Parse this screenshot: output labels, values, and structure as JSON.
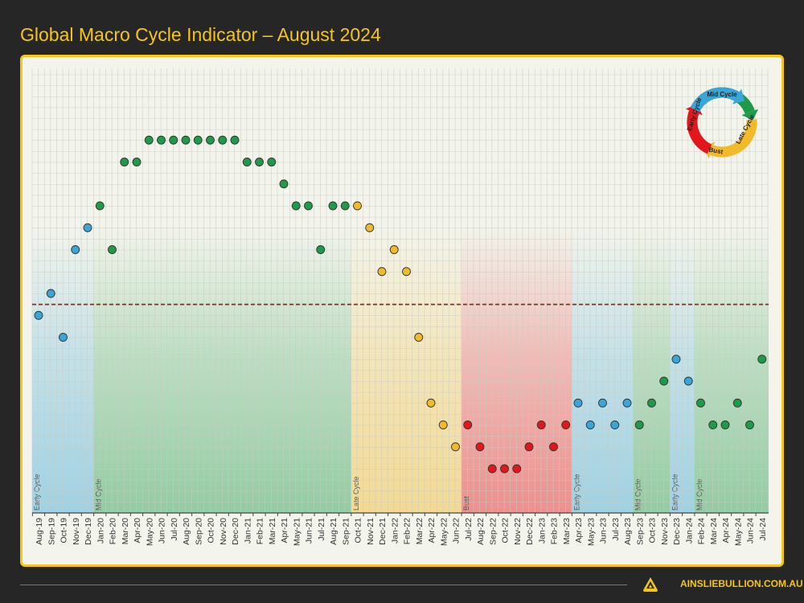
{
  "title": "Global Macro Cycle Indicator – August 2024",
  "footer": {
    "website": "AINSLIEBULLION.COM.AU"
  },
  "colors": {
    "early": "#3aa6d8",
    "mid": "#1f9a4a",
    "late": "#f2b92a",
    "bust": "#e3161b",
    "accent": "#f5c518"
  },
  "cycle_diagram": {
    "labels": [
      "Mid Cycle",
      "Late Cycle",
      "Bust",
      "Early Cycle"
    ]
  },
  "chart_data": {
    "type": "scatter",
    "title": "Global Macro Cycle Indicator – August 2024",
    "xlabel": "",
    "ylabel": "",
    "grid": true,
    "threshold_line": 7.5,
    "ylim": [
      0,
      15
    ],
    "categories": [
      "Aug-19",
      "Sep-19",
      "Oct-19",
      "Nov-19",
      "Dec-19",
      "Jan-20",
      "Feb-20",
      "Mar-20",
      "Apr-20",
      "May-20",
      "Jun-20",
      "Jul-20",
      "Aug-20",
      "Sep-20",
      "Oct-20",
      "Nov-20",
      "Dec-20",
      "Jan-21",
      "Feb-21",
      "Mar-21",
      "Apr-21",
      "May-21",
      "Jun-21",
      "Jul-21",
      "Aug-21",
      "Sep-21",
      "Oct-21",
      "Nov-21",
      "Dec-21",
      "Jan-22",
      "Feb-22",
      "Mar-22",
      "Apr-22",
      "May-22",
      "Jun-22",
      "Jul-22",
      "Aug-22",
      "Sep-22",
      "Oct-22",
      "Nov-22",
      "Dec-22",
      "Jan-23",
      "Feb-23",
      "Mar-23",
      "Apr-23",
      "May-23",
      "Jun-23",
      "Jul-23",
      "Aug-23",
      "Sep-23",
      "Oct-23",
      "Nov-23",
      "Dec-23",
      "Jan-24",
      "Feb-24",
      "Mar-24",
      "Apr-24",
      "May-24",
      "Jun-24",
      "Jul-24"
    ],
    "values": [
      7,
      8,
      6,
      10,
      11,
      12,
      10,
      14,
      14,
      15,
      15,
      15,
      15,
      15,
      15,
      15,
      15,
      14,
      14,
      14,
      13,
      12,
      12,
      10,
      12,
      12,
      12,
      11,
      9,
      10,
      9,
      6,
      3,
      2,
      1,
      2,
      1,
      0,
      0,
      0,
      1,
      2,
      1,
      2,
      3,
      2,
      3,
      2,
      3,
      2,
      3,
      4,
      5,
      4,
      3,
      2,
      2,
      3,
      2,
      5
    ],
    "phases": [
      "early",
      "early",
      "early",
      "early",
      "early",
      "mid",
      "mid",
      "mid",
      "mid",
      "mid",
      "mid",
      "mid",
      "mid",
      "mid",
      "mid",
      "mid",
      "mid",
      "mid",
      "mid",
      "mid",
      "mid",
      "mid",
      "mid",
      "mid",
      "mid",
      "mid",
      "late",
      "late",
      "late",
      "late",
      "late",
      "late",
      "late",
      "late",
      "late",
      "bust",
      "bust",
      "bust",
      "bust",
      "bust",
      "bust",
      "bust",
      "bust",
      "bust",
      "early",
      "early",
      "early",
      "early",
      "early",
      "mid",
      "mid",
      "mid",
      "early",
      "early",
      "mid",
      "mid",
      "mid",
      "mid",
      "mid",
      "mid"
    ],
    "bands": [
      {
        "label": "Early Cycle",
        "phase": "early",
        "from": "Aug-19",
        "to": "Dec-19"
      },
      {
        "label": "Mid Cycle",
        "phase": "mid",
        "from": "Jan-20",
        "to": "Sep-21"
      },
      {
        "label": "Late Cycle",
        "phase": "late",
        "from": "Oct-21",
        "to": "Jun-22"
      },
      {
        "label": "Bust",
        "phase": "bust",
        "from": "Jul-22",
        "to": "Mar-23"
      },
      {
        "label": "Early Cycle",
        "phase": "early",
        "from": "Apr-23",
        "to": "Aug-23"
      },
      {
        "label": "Mid Cycle",
        "phase": "mid",
        "from": "Sep-23",
        "to": "Nov-23"
      },
      {
        "label": "Early Cycle",
        "phase": "early",
        "from": "Dec-23",
        "to": "Jan-24"
      },
      {
        "label": "Mid Cycle",
        "phase": "mid",
        "from": "Feb-24",
        "to": "Jul-24"
      }
    ]
  }
}
